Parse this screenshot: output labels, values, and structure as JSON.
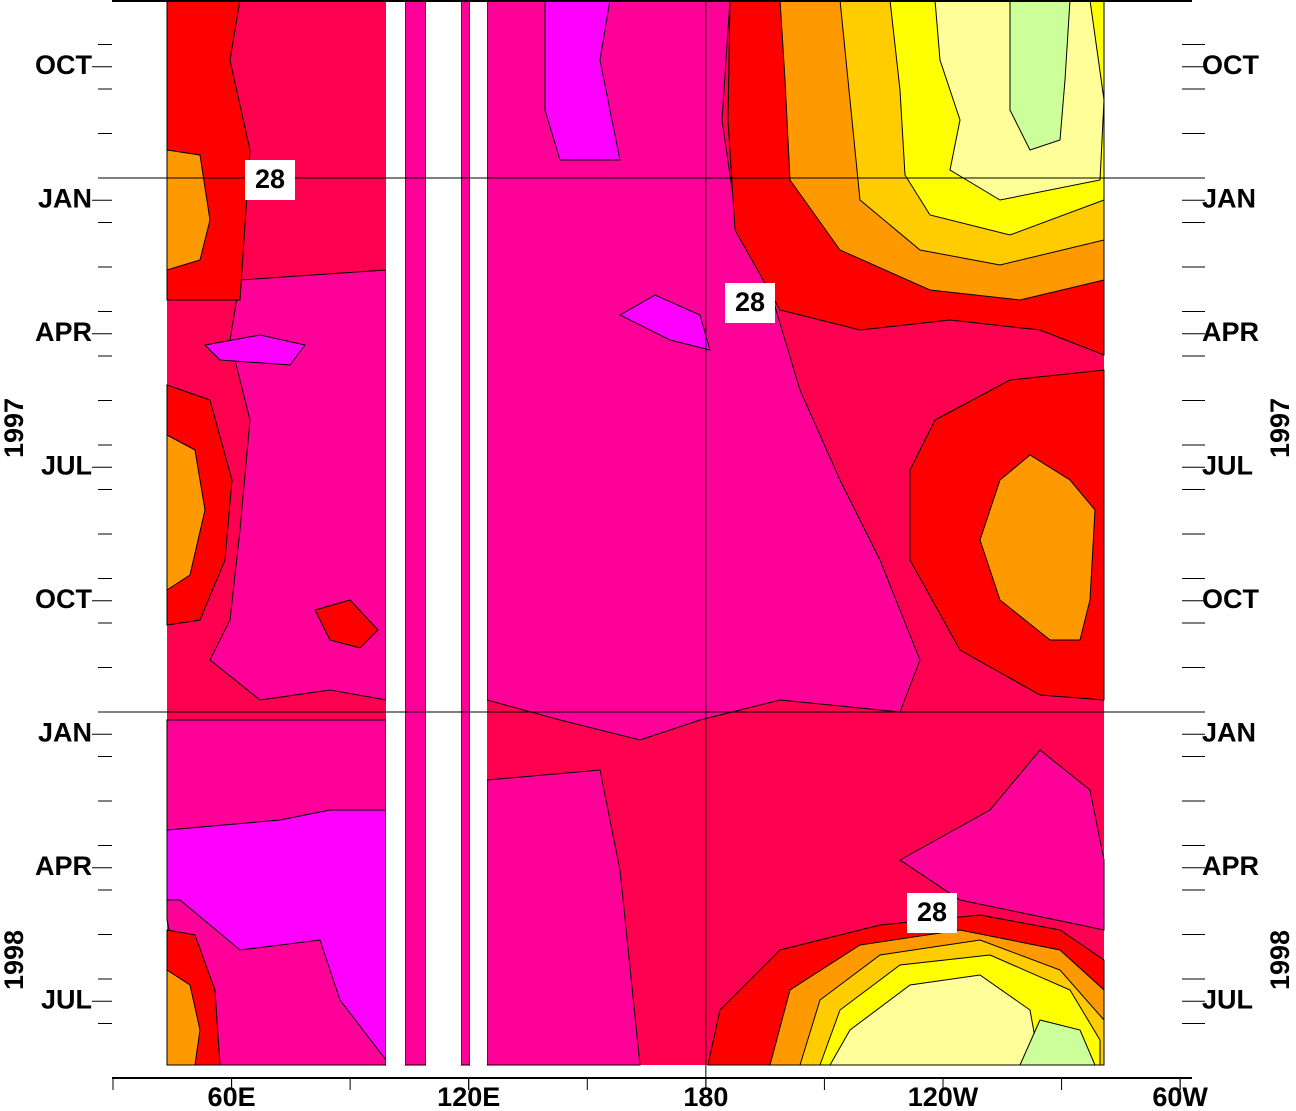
{
  "chart_data": {
    "type": "hovmoller",
    "xlim": [
      30,
      303
    ],
    "xticks": [
      {
        "value": 60,
        "label": "60E"
      },
      {
        "value": 120,
        "label": "120E"
      },
      180,
      {
        "value": 240,
        "label": "120W"
      },
      {
        "value": 300,
        "label": "60W"
      }
    ],
    "ylim": [
      "1996-09",
      "1998-09"
    ],
    "yticks": [
      {
        "value": "1996-10",
        "label": "OCT"
      },
      {
        "value": "1997-01",
        "label": "JAN"
      },
      {
        "value": "1997-04",
        "label": "APR"
      },
      {
        "value": "1997-07",
        "label": "JUL"
      },
      {
        "value": "1997-10",
        "label": "OCT"
      },
      {
        "value": "1998-01",
        "label": "JAN"
      },
      {
        "value": "1998-04",
        "label": "APR"
      },
      {
        "value": "1998-07",
        "label": "JUL"
      }
    ],
    "year_labels": [
      "1997",
      "1998"
    ],
    "contour_labels": [
      "28",
      "28",
      "28"
    ],
    "grid": true
  }
}
